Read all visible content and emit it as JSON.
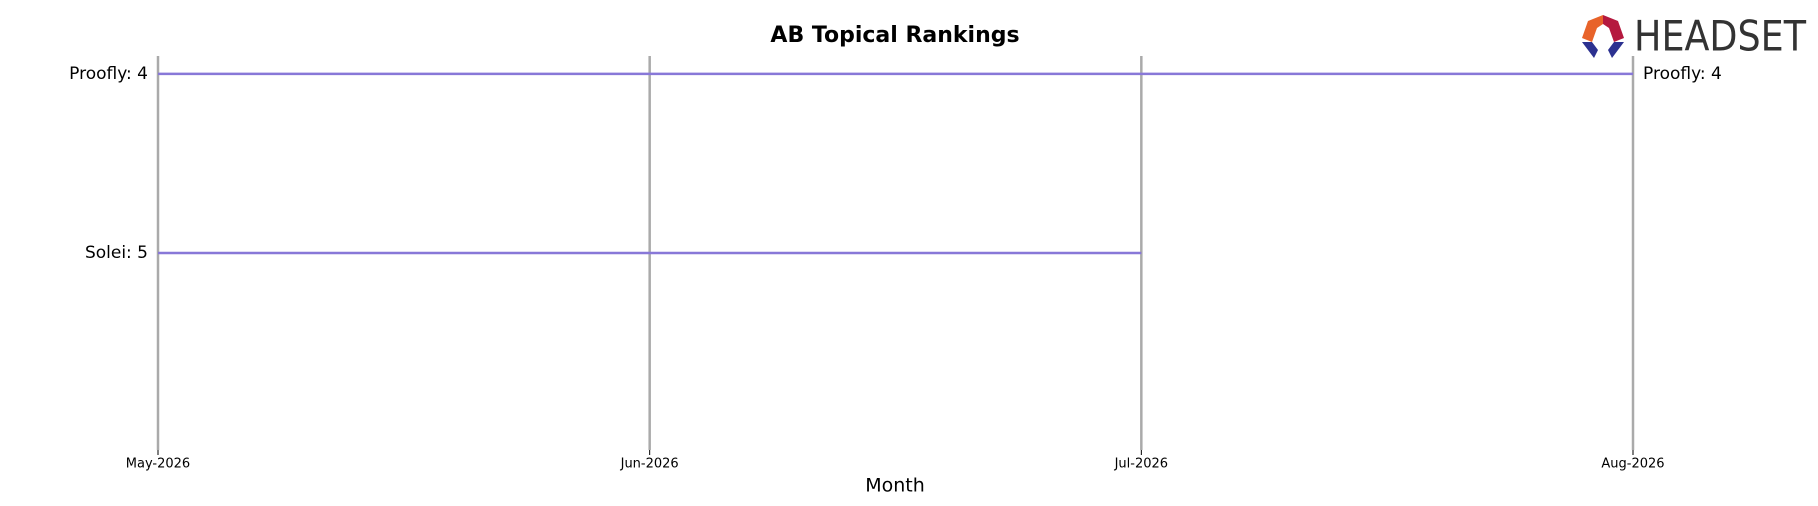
{
  "chart_data": {
    "type": "bump",
    "title": "AB Topical Rankings",
    "x_label": "Month",
    "categories": [
      "May-2026",
      "Jun-2026",
      "Jul-2026",
      "Aug-2026"
    ],
    "series": [
      {
        "name": "Proofly",
        "label": "Proofly: 4",
        "color": "#8878d8",
        "values": [
          4,
          4,
          4,
          4
        ]
      },
      {
        "name": "Solei",
        "label": "Solei: 5",
        "color": "#8878d8",
        "values": [
          5,
          5,
          5,
          null
        ]
      }
    ],
    "ylim": [
      3.9,
      6.1
    ],
    "y_inverted": true,
    "grid": true
  },
  "logo": {
    "text": "HEADSET"
  }
}
